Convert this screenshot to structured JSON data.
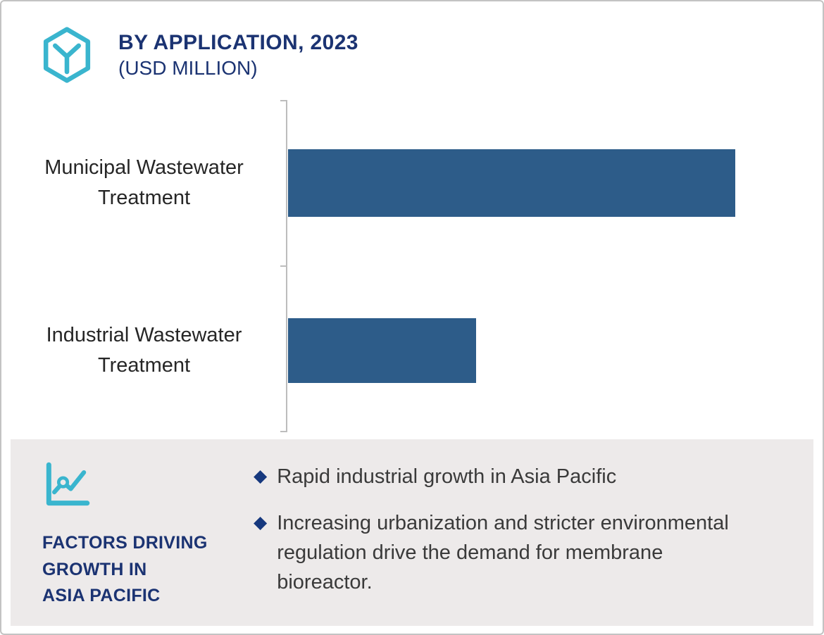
{
  "header": {
    "title": "BY APPLICATION, 2023",
    "subtitle": "(USD MILLION)"
  },
  "chart_data": {
    "type": "bar",
    "orientation": "horizontal",
    "title": "BY APPLICATION, 2023 (USD MILLION)",
    "categories": [
      "Municipal Wastewater Treatment",
      "Industrial Wastewater Treatment"
    ],
    "values": [
      100,
      42
    ],
    "values_estimated": true,
    "value_labels_shown": false,
    "xlim": [
      0,
      117
    ],
    "xlabel": "",
    "ylabel": "",
    "grid": false,
    "legend": false,
    "bar_color": "#2d5c89"
  },
  "factors": {
    "heading": "FACTORS DRIVING\nGROWTH IN\nASIA PACIFIC",
    "bullet_marker": "◆",
    "bullets": [
      "Rapid industrial growth in Asia Pacific",
      "Increasing urbanization and stricter environmental regulation drive the demand for membrane bioreactor."
    ]
  },
  "colors": {
    "navy": "#1b3372",
    "bar_blue": "#2d5c89",
    "teal": "#3ab5ce",
    "panel_bg": "#edeaea",
    "body_text": "#3a3a3a"
  }
}
